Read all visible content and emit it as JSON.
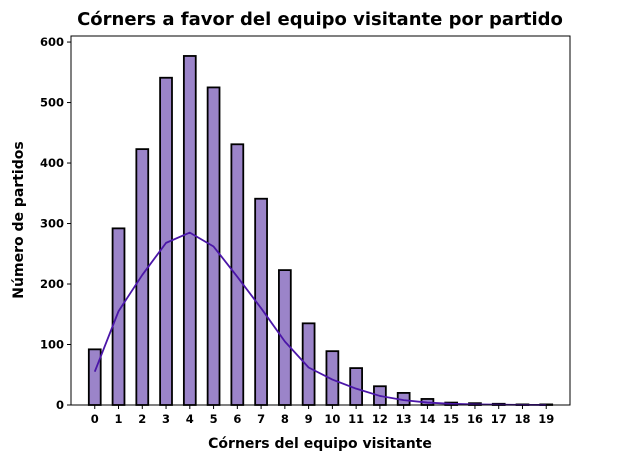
{
  "chart_data": {
    "type": "bar",
    "title": "Córners a favor del equipo visitante por partido",
    "xlabel": "Córners del equipo visitante",
    "ylabel": "Número de partidos",
    "categories": [
      "0",
      "1",
      "2",
      "3",
      "4",
      "5",
      "6",
      "7",
      "8",
      "9",
      "10",
      "11",
      "12",
      "13",
      "14",
      "15",
      "16",
      "17",
      "18",
      "19"
    ],
    "values": [
      92,
      292,
      423,
      541,
      577,
      525,
      431,
      341,
      223,
      135,
      89,
      61,
      31,
      20,
      10,
      4,
      3,
      2,
      1,
      1
    ],
    "kde": [
      55,
      155,
      215,
      268,
      285,
      262,
      212,
      160,
      105,
      62,
      42,
      27,
      15,
      8,
      4,
      2,
      1,
      0.5,
      0.2,
      0.1
    ],
    "xlim": [
      -1,
      20
    ],
    "ylim": [
      0,
      610
    ],
    "yticks": [
      0,
      100,
      200,
      300,
      400,
      500,
      600
    ],
    "bar_color": "#9b84c9",
    "bar_edge_color": "#000000",
    "line_color": "#4b16a8",
    "grid": false,
    "legend": "none"
  }
}
